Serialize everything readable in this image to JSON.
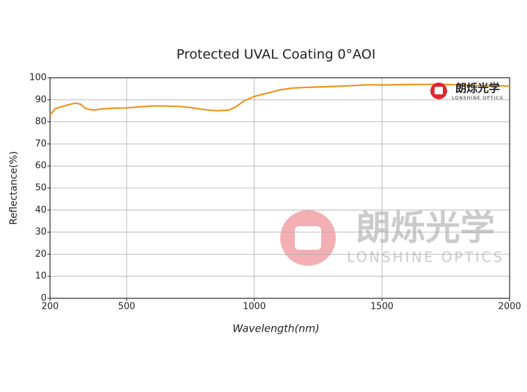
{
  "chart_data": {
    "type": "line",
    "title": "Protected UVAL Coating 0°AOI",
    "x_label": "Wavelength(nm)",
    "y_label": "Reflectance(%)",
    "x": [
      200,
      220,
      250,
      280,
      300,
      320,
      340,
      370,
      400,
      450,
      500,
      550,
      600,
      650,
      700,
      750,
      800,
      850,
      900,
      930,
      960,
      1000,
      1050,
      1100,
      1150,
      1200,
      1300,
      1400,
      1450,
      1500,
      1600,
      1700,
      1800,
      1900,
      2000
    ],
    "series": [
      {
        "name": "Reflectance",
        "color": "#f0921c",
        "values": [
          83,
          86,
          87,
          88,
          88.5,
          88,
          86,
          85.3,
          85.8,
          86.2,
          86.3,
          86.8,
          87.2,
          87.2,
          87,
          86.5,
          85.6,
          85,
          85.3,
          87,
          89.5,
          91.5,
          93,
          94.5,
          95.3,
          95.6,
          96,
          96.5,
          96.8,
          96.7,
          96.9,
          97,
          96.8,
          96.4,
          96.2
        ]
      }
    ],
    "xlim": [
      200,
      2000
    ],
    "xticks": [
      200,
      500,
      1000,
      1500,
      2000
    ],
    "ylim": [
      0,
      100
    ],
    "yticks": [
      0,
      10,
      20,
      30,
      40,
      50,
      60,
      70,
      80,
      90,
      100
    ],
    "grid": true,
    "logo_text": "朗烁光学",
    "logo_subtext": "LONSHINE OPTICS"
  }
}
